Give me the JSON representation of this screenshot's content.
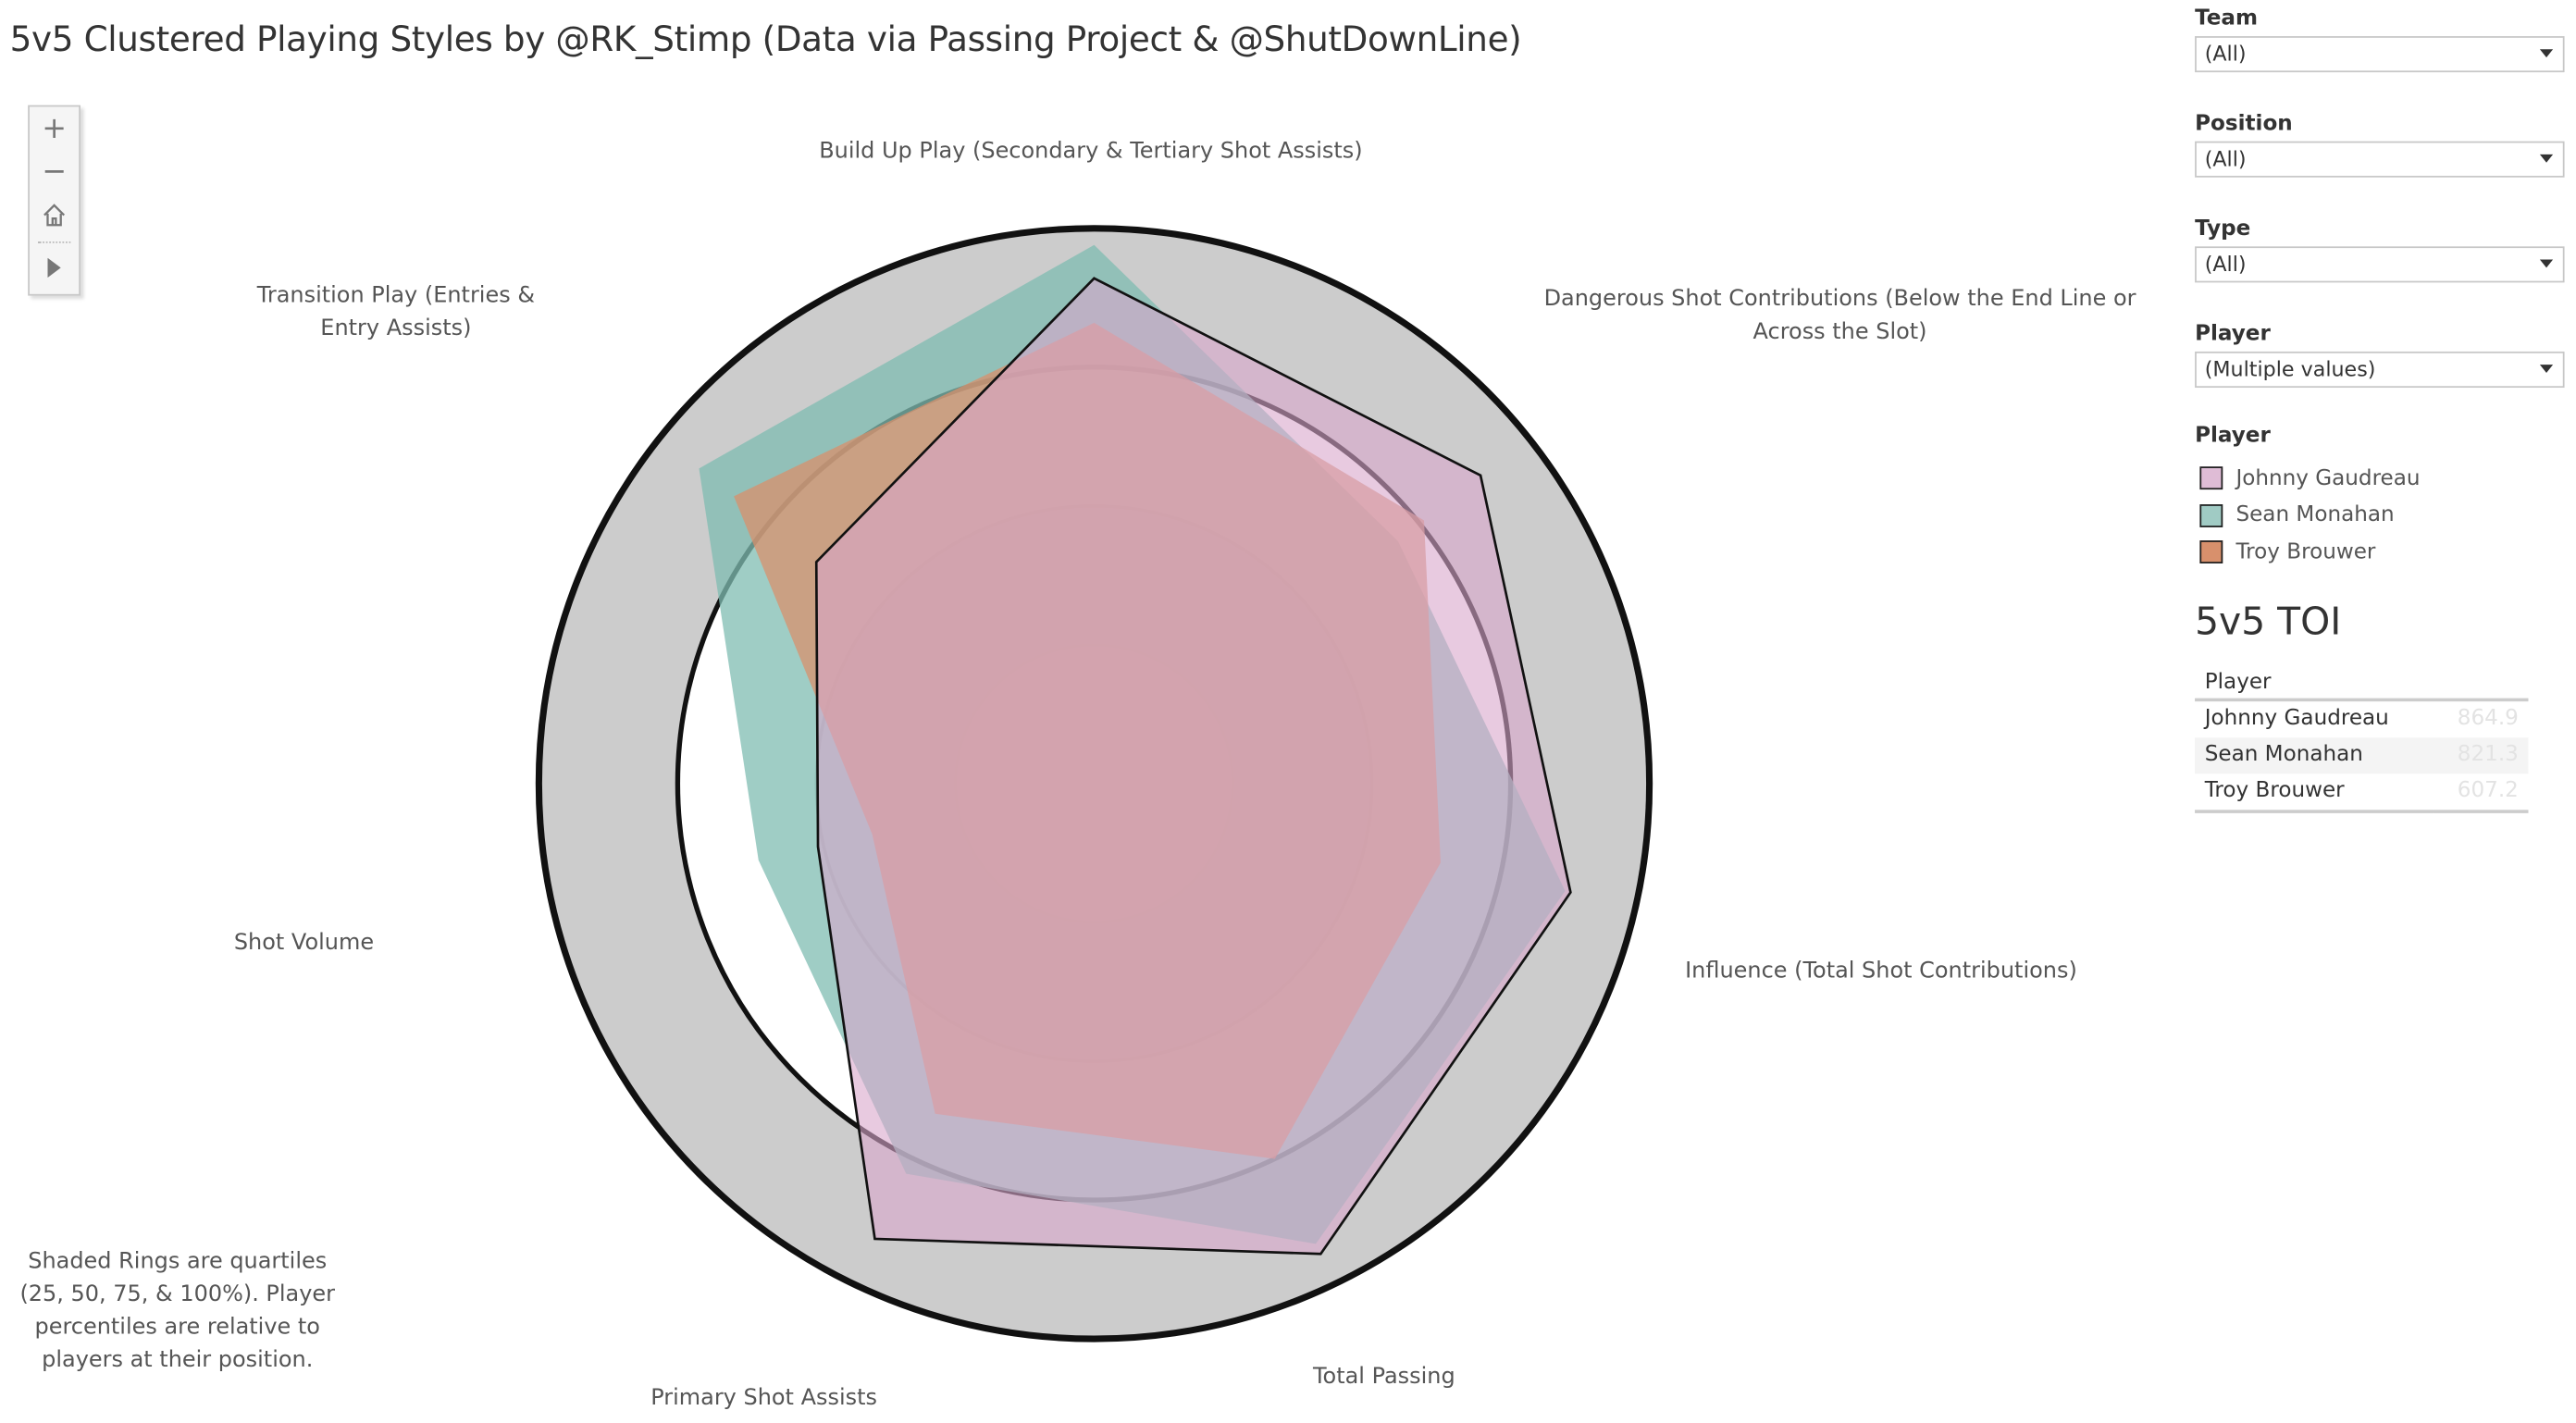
{
  "title": "5v5 Clustered Playing Styles by @RK_Stimp (Data via Passing Project & @ShutDownLine)",
  "zoom_controls": {
    "zoom_in_icon": "plus-icon",
    "zoom_out_icon": "minus-icon",
    "home_icon": "home-icon",
    "play_icon": "play-icon"
  },
  "note": "Shaded Rings are quartiles (25, 50, 75, & 100%). Player percentiles are relative to players at their position.",
  "filters": [
    {
      "label": "Team",
      "value": "(All)"
    },
    {
      "label": "Position",
      "value": "(All)"
    },
    {
      "label": "Type",
      "value": "(All)"
    },
    {
      "label": "Player",
      "value": "(Multiple values)"
    }
  ],
  "legend": {
    "title": "Player",
    "items": [
      {
        "label": "Johnny Gaudreau",
        "color": "#dfbcd6"
      },
      {
        "label": "Sean Monahan",
        "color": "#a0cbc4"
      },
      {
        "label": "Troy Brouwer",
        "color": "#d8906c"
      }
    ]
  },
  "toi": {
    "title": "5v5 TOI",
    "column": "Player",
    "rows": [
      {
        "player": "Johnny Gaudreau",
        "value": "864.9"
      },
      {
        "player": "Sean Monahan",
        "value": "821.3"
      },
      {
        "player": "Troy Brouwer",
        "value": "607.2"
      }
    ]
  },
  "chart_data": {
    "type": "radar",
    "axes": [
      "Build Up Play (Secondary & Tertiary Shot Assists)",
      "Dangerous Shot Contributions (Below the End Line or Across the Slot)",
      "Influence (Total Shot Contributions)",
      "Total Passing",
      "Primary Shot Assists",
      "Shot Volume",
      "Transition Play (Entries & Entry Assists)"
    ],
    "rings": [
      25,
      50,
      75,
      100
    ],
    "range": [
      0,
      100
    ],
    "series": [
      {
        "name": "Sean Monahan",
        "color": "#7fbcb2",
        "values": [
          97,
          70,
          87,
          92,
          78,
          62,
          91
        ]
      },
      {
        "name": "Troy Brouwer",
        "color": "#d8906c",
        "values": [
          83,
          76,
          64,
          75,
          66,
          41,
          83
        ]
      },
      {
        "name": "Johnny Gaudreau",
        "color": "#d8a6cb",
        "values": [
          91,
          89,
          88,
          94,
          91,
          51,
          64
        ]
      }
    ]
  }
}
